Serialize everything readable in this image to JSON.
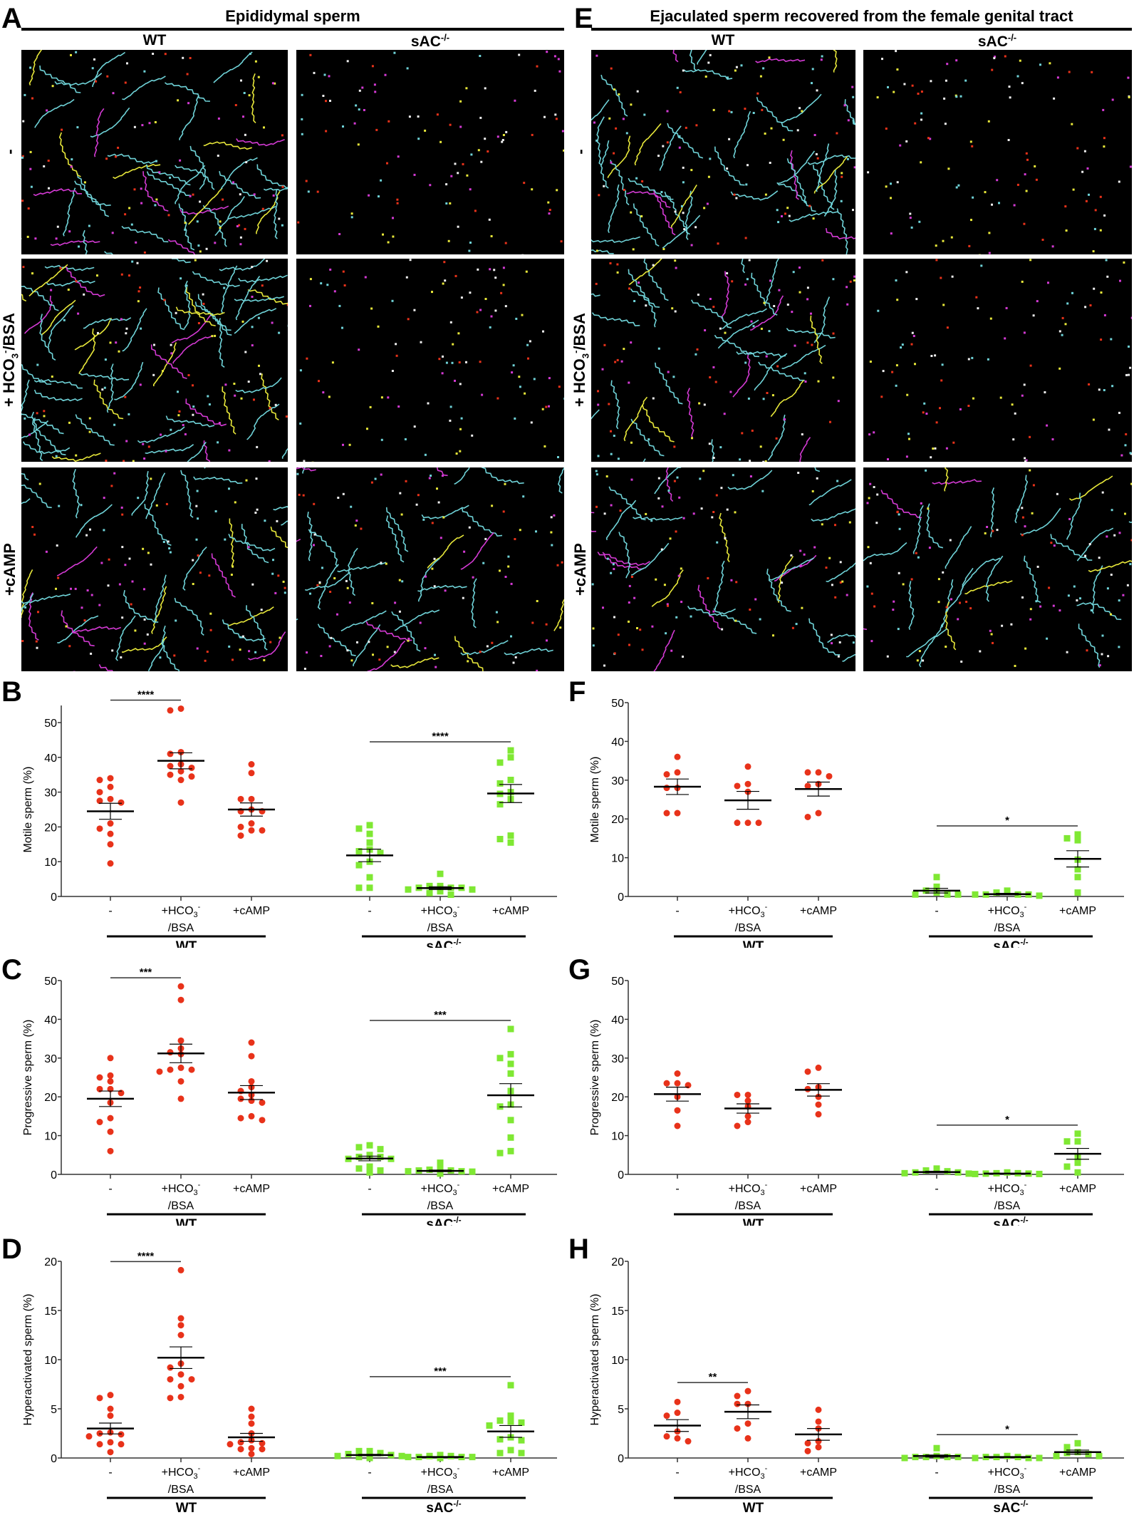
{
  "panels_top": [
    {
      "letter": "A",
      "title": "Epididymal sperm",
      "columns": [
        {
          "main": "WT",
          "sup": ""
        },
        {
          "main": "sAC",
          "sup": "-/-"
        }
      ]
    },
    {
      "letter": "E",
      "title": "Ejaculated sperm recovered from the female genital tract",
      "columns": [
        {
          "main": "WT",
          "sup": ""
        },
        {
          "main": "sAC",
          "sup": "-/-"
        }
      ]
    }
  ],
  "row_labels": [
    {
      "pre": "-",
      "sub": "",
      "sup": "",
      "post": ""
    },
    {
      "pre": "+ HCO",
      "sub": "3",
      "sup": "-",
      "post": "/BSA"
    },
    {
      "pre": "+cAMP",
      "sub": "",
      "sup": "",
      "post": ""
    }
  ],
  "colors": {
    "wt": "#e8321a",
    "sac": "#7fe833",
    "tracks": [
      "#6fd3d8",
      "#e8e83a",
      "#e8321a",
      "#d43ad4",
      "#f0f0f0"
    ]
  },
  "chart_data": [
    {
      "letter": "B",
      "type": "scatter",
      "ylabel": "Motile sperm (%)",
      "ylim": [
        0,
        55
      ],
      "yticks": [
        0,
        10,
        20,
        30,
        40,
        50
      ],
      "groups": [
        {
          "genotype": "WT",
          "condition": "-",
          "points": [
            34,
            33.5,
            31.5,
            30,
            28,
            27.5,
            27,
            21,
            19.5,
            18,
            15,
            9.5
          ],
          "mean": 24.5,
          "sem": 2.3
        },
        {
          "genotype": "WT",
          "condition": "+HCO3-/BSA",
          "points": [
            54,
            53.5,
            41.5,
            41,
            38,
            37.5,
            37,
            36,
            35,
            34.5,
            33.5,
            27
          ],
          "mean": 39,
          "sem": 2.3
        },
        {
          "genotype": "WT",
          "condition": "+cAMP",
          "points": [
            38,
            35.5,
            28,
            28,
            25,
            24.5,
            24.5,
            21,
            20,
            19,
            19,
            17.5
          ],
          "mean": 25,
          "sem": 1.9
        },
        {
          "genotype": "sAC-/-",
          "condition": "-",
          "points": [
            20.5,
            19.5,
            18,
            15.5,
            13.5,
            13,
            12.5,
            10,
            9,
            5.5,
            2.5,
            2.5
          ],
          "mean": 11.8,
          "sem": 1.8
        },
        {
          "genotype": "sAC-/-",
          "condition": "+HCO3-/BSA",
          "points": [
            6.5,
            3,
            3,
            2.5,
            2.5,
            2.5,
            2,
            2,
            1.5,
            1.5,
            1,
            0.5
          ],
          "mean": 2.4,
          "sem": 0.4
        },
        {
          "genotype": "sAC-/-",
          "condition": "+cAMP",
          "points": [
            42,
            40,
            38.5,
            33.5,
            32.5,
            30,
            29.5,
            28,
            26.5,
            17.5,
            16.5,
            15.5
          ],
          "mean": 29.6,
          "sem": 2.6
        }
      ],
      "significance": [
        {
          "from": 0,
          "to": 1,
          "label": "****"
        },
        {
          "from": 3,
          "to": 5,
          "label": "****"
        }
      ]
    },
    {
      "letter": "C",
      "type": "scatter",
      "ylabel": "Progressive sperm (%)",
      "ylim": [
        0,
        50
      ],
      "yticks": [
        0,
        10,
        20,
        30,
        40,
        50
      ],
      "groups": [
        {
          "genotype": "WT",
          "condition": "-",
          "points": [
            30,
            25.5,
            25,
            24,
            22,
            22,
            21,
            18.5,
            14.5,
            13.5,
            11,
            6
          ],
          "mean": 19.5,
          "sem": 2
        },
        {
          "genotype": "WT",
          "condition": "+HCO3-/BSA",
          "points": [
            48.5,
            45,
            34.5,
            32.5,
            31.5,
            31,
            27.5,
            27,
            27,
            26.5,
            24,
            19.5
          ],
          "mean": 31.2,
          "sem": 2.4
        },
        {
          "genotype": "WT",
          "condition": "+cAMP",
          "points": [
            34,
            30.5,
            24,
            22.5,
            21.5,
            20.5,
            19.5,
            19,
            18.5,
            15,
            14.5,
            14
          ],
          "mean": 21.1,
          "sem": 1.8
        },
        {
          "genotype": "sAC-/-",
          "condition": "-",
          "points": [
            7.5,
            7,
            6.5,
            5,
            4.5,
            4.5,
            4,
            4,
            2,
            1.5,
            1,
            0.5
          ],
          "mean": 4.1,
          "sem": 0.6
        },
        {
          "genotype": "sAC-/-",
          "condition": "+HCO3-/BSA",
          "points": [
            3,
            1.5,
            1.2,
            1,
            1,
            0.8,
            0.8,
            0.7,
            0.5,
            0.5,
            0.3,
            0.2
          ],
          "mean": 0.9,
          "sem": 0.2
        },
        {
          "genotype": "sAC-/-",
          "condition": "+cAMP",
          "points": [
            37.5,
            31,
            30,
            28.5,
            26,
            21.5,
            18,
            17.5,
            14,
            9.5,
            6,
            5.5
          ],
          "mean": 20.4,
          "sem": 3
        }
      ],
      "significance": [
        {
          "from": 0,
          "to": 1,
          "label": "***"
        },
        {
          "from": 3,
          "to": 5,
          "label": "***"
        }
      ]
    },
    {
      "letter": "D",
      "type": "scatter",
      "ylabel": "Hyperactivated sperm (%)",
      "ylim": [
        0,
        20
      ],
      "yticks": [
        0,
        5,
        10,
        15,
        20
      ],
      "groups": [
        {
          "genotype": "WT",
          "condition": "-",
          "points": [
            6.4,
            6.1,
            5,
            4.3,
            2.6,
            2.5,
            2.4,
            2.2,
            1.6,
            1.4,
            1.4,
            0.6
          ],
          "mean": 3,
          "sem": 0.55
        },
        {
          "genotype": "WT",
          "condition": "+HCO3-/BSA",
          "points": [
            19.1,
            14.2,
            13.5,
            12.5,
            9.6,
            9.2,
            8.5,
            8,
            8,
            7.3,
            6.2,
            6.1
          ],
          "mean": 10.2,
          "sem": 1.1
        },
        {
          "genotype": "WT",
          "condition": "+cAMP",
          "points": [
            5,
            4.2,
            3.5,
            2.5,
            1.8,
            1.6,
            1.5,
            1.4,
            1,
            0.9,
            0.9,
            0.4
          ],
          "mean": 2.1,
          "sem": 0.4
        },
        {
          "genotype": "sAC-/-",
          "condition": "-",
          "points": [
            0.7,
            0.7,
            0.5,
            0.4,
            0.3,
            0.2,
            0.2,
            0.1,
            0.1,
            0.1,
            0.1,
            0
          ],
          "mean": 0.3,
          "sem": 0.07
        },
        {
          "genotype": "sAC-/-",
          "condition": "+HCO3-/BSA",
          "points": [
            0.3,
            0.2,
            0.2,
            0.1,
            0.1,
            0.1,
            0.1,
            0.1,
            0,
            0,
            0,
            0
          ],
          "mean": 0.1,
          "sem": 0.03
        },
        {
          "genotype": "sAC-/-",
          "condition": "+cAMP",
          "points": [
            7.4,
            4.3,
            3.8,
            3.7,
            3.6,
            3.3,
            2.1,
            1.9,
            1.8,
            0.8,
            0.5,
            0.5
          ],
          "mean": 2.7,
          "sem": 0.6
        }
      ],
      "significance": [
        {
          "from": 0,
          "to": 1,
          "label": "****"
        },
        {
          "from": 3,
          "to": 5,
          "label": "***"
        }
      ]
    },
    {
      "letter": "F",
      "type": "scatter",
      "ylabel": "Motile sperm (%)",
      "ylim": [
        0,
        50
      ],
      "yticks": [
        0,
        10,
        20,
        30,
        40,
        50
      ],
      "groups": [
        {
          "genotype": "WT",
          "condition": "-",
          "points": [
            36,
            32,
            31.5,
            28,
            28,
            21.5,
            21.5
          ],
          "mean": 28.3,
          "sem": 2
        },
        {
          "genotype": "WT",
          "condition": "+HCO3-/BSA",
          "points": [
            33.5,
            29,
            28.5,
            27,
            19,
            19,
            19
          ],
          "mean": 24.8,
          "sem": 2.3
        },
        {
          "genotype": "WT",
          "condition": "+cAMP",
          "points": [
            32,
            32,
            31,
            29,
            28.5,
            21.5,
            20.5
          ],
          "mean": 27.7,
          "sem": 1.8
        },
        {
          "genotype": "sAC-/-",
          "condition": "-",
          "points": [
            5,
            2.5,
            1.5,
            1,
            0.5,
            0.5,
            0.5
          ],
          "mean": 1.5,
          "sem": 0.6
        },
        {
          "genotype": "sAC-/-",
          "condition": "+HCO3-/BSA",
          "points": [
            1.5,
            1,
            0.5,
            0.5,
            0.5,
            0.5,
            0.2
          ],
          "mean": 0.6,
          "sem": 0.2
        },
        {
          "genotype": "sAC-/-",
          "condition": "+cAMP",
          "points": [
            16,
            15,
            14.5,
            9.5,
            7,
            5,
            1
          ],
          "mean": 9.7,
          "sem": 2.1
        }
      ],
      "significance": [
        {
          "from": 3,
          "to": 5,
          "label": "*"
        }
      ]
    },
    {
      "letter": "G",
      "type": "scatter",
      "ylabel": "Progressive sperm (%)",
      "ylim": [
        0,
        50
      ],
      "yticks": [
        0,
        10,
        20,
        30,
        40,
        50
      ],
      "groups": [
        {
          "genotype": "WT",
          "condition": "-",
          "points": [
            26,
            23.5,
            23.5,
            23,
            20,
            16.5,
            12.5
          ],
          "mean": 20.7,
          "sem": 1.8
        },
        {
          "genotype": "WT",
          "condition": "+HCO3-/BSA",
          "points": [
            20.5,
            20.5,
            19,
            17.5,
            15,
            13.5,
            12.5
          ],
          "mean": 17,
          "sem": 1.2
        },
        {
          "genotype": "WT",
          "condition": "+cAMP",
          "points": [
            27.5,
            26.5,
            22.5,
            22,
            20,
            18,
            15.5
          ],
          "mean": 21.8,
          "sem": 1.6
        },
        {
          "genotype": "sAC-/-",
          "condition": "-",
          "points": [
            1.5,
            1,
            0.8,
            0.5,
            0.5,
            0.3,
            0.2
          ],
          "mean": 0.6,
          "sem": 0.2
        },
        {
          "genotype": "sAC-/-",
          "condition": "+HCO3-/BSA",
          "points": [
            0.5,
            0.3,
            0.3,
            0.2,
            0.2,
            0.1,
            0.1
          ],
          "mean": 0.2,
          "sem": 0.06
        },
        {
          "genotype": "sAC-/-",
          "condition": "+cAMP",
          "points": [
            10.5,
            8.5,
            8.5,
            4.5,
            3,
            2,
            0.5
          ],
          "mean": 5.3,
          "sem": 1.4
        }
      ],
      "significance": [
        {
          "from": 3,
          "to": 5,
          "label": "*"
        }
      ]
    },
    {
      "letter": "H",
      "type": "scatter",
      "ylabel": "Hyperactivated sperm (%)",
      "ylim": [
        0,
        20
      ],
      "yticks": [
        0,
        5,
        10,
        15,
        20
      ],
      "groups": [
        {
          "genotype": "WT",
          "condition": "-",
          "points": [
            5.7,
            4.6,
            4.3,
            2.7,
            2.2,
            2,
            1.7
          ],
          "mean": 3.3,
          "sem": 0.6
        },
        {
          "genotype": "WT",
          "condition": "+HCO3-/BSA",
          "points": [
            6.8,
            6.3,
            5.5,
            5.5,
            3.5,
            3,
            2
          ],
          "mean": 4.7,
          "sem": 0.7
        },
        {
          "genotype": "WT",
          "condition": "+cAMP",
          "points": [
            4.9,
            3.7,
            3,
            1.7,
            1.5,
            1.1,
            0.7
          ],
          "mean": 2.4,
          "sem": 0.6
        },
        {
          "genotype": "sAC-/-",
          "condition": "-",
          "points": [
            1,
            0.2,
            0.1,
            0.1,
            0.1,
            0.1,
            0
          ],
          "mean": 0.2,
          "sem": 0.1
        },
        {
          "genotype": "sAC-/-",
          "condition": "+HCO3-/BSA",
          "points": [
            0.2,
            0.1,
            0.1,
            0.1,
            0,
            0,
            0
          ],
          "mean": 0.1,
          "sem": 0.03
        },
        {
          "genotype": "sAC-/-",
          "condition": "+cAMP",
          "points": [
            1.5,
            1.1,
            0.6,
            0.5,
            0.4,
            0.2,
            0.2
          ],
          "mean": 0.6,
          "sem": 0.2
        }
      ],
      "significance": [
        {
          "from": 0,
          "to": 1,
          "label": "**"
        },
        {
          "from": 3,
          "to": 5,
          "label": "*"
        }
      ]
    }
  ],
  "x_tick_labels": [
    {
      "main": "-",
      "sub": "",
      "sup": "",
      "line2": ""
    },
    {
      "main": "+HCO",
      "sub": "3",
      "sup": "-",
      "line2": "/BSA"
    },
    {
      "main": "+cAMP",
      "sub": "",
      "sup": "",
      "line2": ""
    }
  ],
  "group_labels": [
    {
      "main": "WT",
      "sup": ""
    },
    {
      "main": "sAC",
      "sup": "-/-"
    }
  ]
}
